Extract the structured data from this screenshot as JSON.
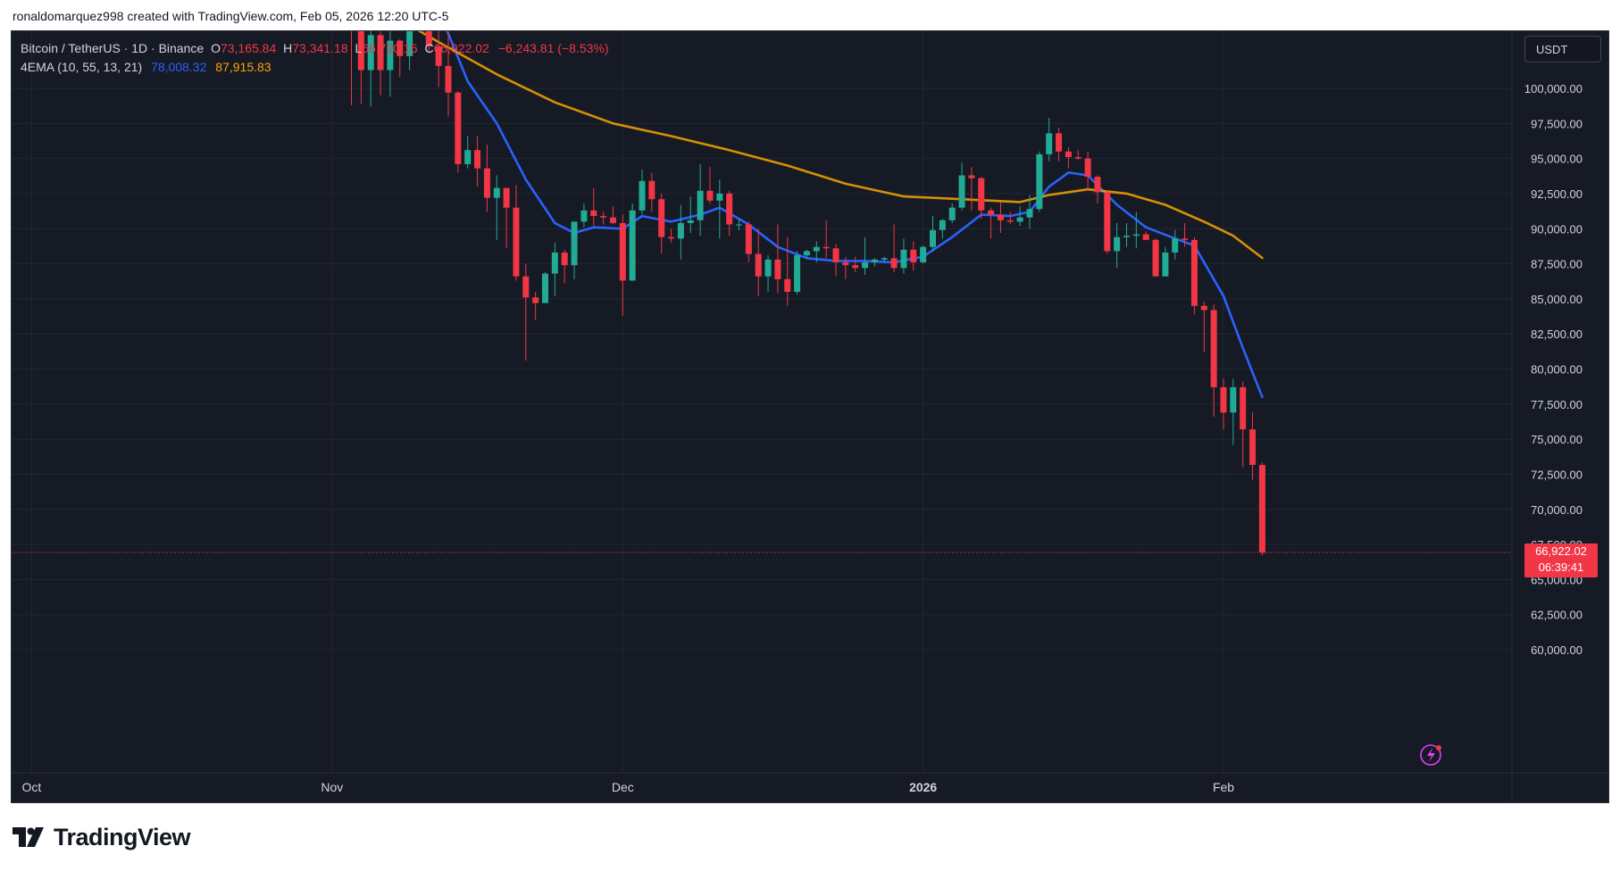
{
  "header": {
    "attribution": "ronaldomarquez998 created with TradingView.com, Feb 05, 2026 12:20 UTC-5"
  },
  "legend": {
    "symbol": "Bitcoin / TetherUS · 1D · Binance",
    "open_label": "O",
    "open": "73,165.84",
    "high_label": "H",
    "high": "73,341.18",
    "low_label": "L",
    "low": "66,720.15",
    "close_label": "C",
    "close": "66,922.02",
    "change": "−6,243.81 (−8.53%)",
    "indicator": "4EMA (10, 55, 13, 21)",
    "ema_fast_value": "78,008.32",
    "ema_slow_value": "87,915.83"
  },
  "currency": "USDT",
  "last_price": {
    "price": "66,922.02",
    "countdown": "06:39:41"
  },
  "brand": {
    "name": "TradingView"
  },
  "colors": {
    "up": "#22ab94",
    "down": "#f23645",
    "ema_fast": "#2962ff",
    "ema_slow": "#f7a600",
    "background": "#161a25",
    "grid": "#232733"
  },
  "chart_data": {
    "type": "candlestick",
    "y_ticks": [
      "60,000.00",
      "62,500.00",
      "65,000.00",
      "67,500.00",
      "70,000.00",
      "72,500.00",
      "75,000.00",
      "77,500.00",
      "80,000.00",
      "82,500.00",
      "85,000.00",
      "87,500.00",
      "90,000.00",
      "92,500.00",
      "95,000.00",
      "97,500.00",
      "100,000.00"
    ],
    "ylim": [
      58000,
      104500
    ],
    "x_labels": [
      {
        "label": "Oct",
        "date": "2025-10-01"
      },
      {
        "label": "Nov",
        "date": "2025-11-01"
      },
      {
        "label": "Dec",
        "date": "2025-12-01"
      },
      {
        "label": "2026",
        "date": "2026-01-01"
      },
      {
        "label": "Feb",
        "date": "2026-02-01"
      }
    ],
    "candles": [
      {
        "date": "2025-11-03",
        "o": 110500,
        "h": 110700,
        "l": 98800,
        "c": 104500
      },
      {
        "date": "2025-11-04",
        "o": 104500,
        "h": 104800,
        "l": 98900,
        "c": 101300
      },
      {
        "date": "2025-11-05",
        "o": 101300,
        "h": 104500,
        "l": 98700,
        "c": 103800
      },
      {
        "date": "2025-11-06",
        "o": 103800,
        "h": 104500,
        "l": 99500,
        "c": 101300
      },
      {
        "date": "2025-11-07",
        "o": 101300,
        "h": 104300,
        "l": 99400,
        "c": 103400
      },
      {
        "date": "2025-11-08",
        "o": 103400,
        "h": 103500,
        "l": 100800,
        "c": 102300
      },
      {
        "date": "2025-11-09",
        "o": 102300,
        "h": 105500,
        "l": 101300,
        "c": 104700
      },
      {
        "date": "2025-11-10",
        "o": 104700,
        "h": 106800,
        "l": 104500,
        "c": 106000
      },
      {
        "date": "2025-11-11",
        "o": 106000,
        "h": 107000,
        "l": 102500,
        "c": 103000
      },
      {
        "date": "2025-11-12",
        "o": 103000,
        "h": 105500,
        "l": 100100,
        "c": 101600
      },
      {
        "date": "2025-11-13",
        "o": 101600,
        "h": 104000,
        "l": 98000,
        "c": 99700
      },
      {
        "date": "2025-11-14",
        "o": 99700,
        "h": 99800,
        "l": 94000,
        "c": 94600
      },
      {
        "date": "2025-11-15",
        "o": 94600,
        "h": 96600,
        "l": 94300,
        "c": 95600
      },
      {
        "date": "2025-11-16",
        "o": 95600,
        "h": 96600,
        "l": 93000,
        "c": 94300
      },
      {
        "date": "2025-11-17",
        "o": 94300,
        "h": 96000,
        "l": 91200,
        "c": 92200
      },
      {
        "date": "2025-11-18",
        "o": 92200,
        "h": 93800,
        "l": 89200,
        "c": 92900
      },
      {
        "date": "2025-11-19",
        "o": 92900,
        "h": 92900,
        "l": 88600,
        "c": 91500
      },
      {
        "date": "2025-11-20",
        "o": 91500,
        "h": 93100,
        "l": 86300,
        "c": 86600
      },
      {
        "date": "2025-11-21",
        "o": 86600,
        "h": 87500,
        "l": 80600,
        "c": 85100
      },
      {
        "date": "2025-11-22",
        "o": 85100,
        "h": 85500,
        "l": 83500,
        "c": 84700
      },
      {
        "date": "2025-11-23",
        "o": 84700,
        "h": 86900,
        "l": 84700,
        "c": 86800
      },
      {
        "date": "2025-11-24",
        "o": 86800,
        "h": 89000,
        "l": 85200,
        "c": 88300
      },
      {
        "date": "2025-11-25",
        "o": 88300,
        "h": 88500,
        "l": 86100,
        "c": 87400
      },
      {
        "date": "2025-11-26",
        "o": 87400,
        "h": 90500,
        "l": 86400,
        "c": 90500
      },
      {
        "date": "2025-11-27",
        "o": 90500,
        "h": 91800,
        "l": 90100,
        "c": 91300
      },
      {
        "date": "2025-11-28",
        "o": 91300,
        "h": 92900,
        "l": 90200,
        "c": 90900
      },
      {
        "date": "2025-11-29",
        "o": 90900,
        "h": 91200,
        "l": 90300,
        "c": 90800
      },
      {
        "date": "2025-11-30",
        "o": 90800,
        "h": 91600,
        "l": 90300,
        "c": 90400
      },
      {
        "date": "2025-12-01",
        "o": 90400,
        "h": 91000,
        "l": 83800,
        "c": 86300
      },
      {
        "date": "2025-12-02",
        "o": 86300,
        "h": 91800,
        "l": 86300,
        "c": 91300
      },
      {
        "date": "2025-12-03",
        "o": 91300,
        "h": 94200,
        "l": 91000,
        "c": 93400
      },
      {
        "date": "2025-12-04",
        "o": 93400,
        "h": 94000,
        "l": 91200,
        "c": 92100
      },
      {
        "date": "2025-12-05",
        "o": 92100,
        "h": 92500,
        "l": 88200,
        "c": 89400
      },
      {
        "date": "2025-12-06",
        "o": 89400,
        "h": 90000,
        "l": 89000,
        "c": 89300
      },
      {
        "date": "2025-12-07",
        "o": 89300,
        "h": 91700,
        "l": 87800,
        "c": 90400
      },
      {
        "date": "2025-12-08",
        "o": 90400,
        "h": 92300,
        "l": 89700,
        "c": 90600
      },
      {
        "date": "2025-12-09",
        "o": 90600,
        "h": 94600,
        "l": 89500,
        "c": 92700
      },
      {
        "date": "2025-12-10",
        "o": 92700,
        "h": 94400,
        "l": 91800,
        "c": 92000
      },
      {
        "date": "2025-12-11",
        "o": 92000,
        "h": 93500,
        "l": 89300,
        "c": 92500
      },
      {
        "date": "2025-12-12",
        "o": 92500,
        "h": 92700,
        "l": 89500,
        "c": 90300
      },
      {
        "date": "2025-12-13",
        "o": 90300,
        "h": 90700,
        "l": 89900,
        "c": 90300
      },
      {
        "date": "2025-12-14",
        "o": 90300,
        "h": 90500,
        "l": 87600,
        "c": 88200
      },
      {
        "date": "2025-12-15",
        "o": 88200,
        "h": 90000,
        "l": 85200,
        "c": 86600
      },
      {
        "date": "2025-12-16",
        "o": 86600,
        "h": 88100,
        "l": 85500,
        "c": 87800
      },
      {
        "date": "2025-12-17",
        "o": 87800,
        "h": 90300,
        "l": 85400,
        "c": 86400
      },
      {
        "date": "2025-12-18",
        "o": 86400,
        "h": 89400,
        "l": 84500,
        "c": 85500
      },
      {
        "date": "2025-12-19",
        "o": 85500,
        "h": 88400,
        "l": 85300,
        "c": 88100
      },
      {
        "date": "2025-12-20",
        "o": 88100,
        "h": 88500,
        "l": 87900,
        "c": 88400
      },
      {
        "date": "2025-12-21",
        "o": 88400,
        "h": 89100,
        "l": 87600,
        "c": 88700
      },
      {
        "date": "2025-12-22",
        "o": 88700,
        "h": 90600,
        "l": 87900,
        "c": 88600
      },
      {
        "date": "2025-12-23",
        "o": 88600,
        "h": 88900,
        "l": 86600,
        "c": 87600
      },
      {
        "date": "2025-12-24",
        "o": 87600,
        "h": 88000,
        "l": 86400,
        "c": 87400
      },
      {
        "date": "2025-12-25",
        "o": 87400,
        "h": 88000,
        "l": 86900,
        "c": 87200
      },
      {
        "date": "2025-12-26",
        "o": 87200,
        "h": 89400,
        "l": 86700,
        "c": 87600
      },
      {
        "date": "2025-12-27",
        "o": 87600,
        "h": 87900,
        "l": 87300,
        "c": 87800
      },
      {
        "date": "2025-12-28",
        "o": 87800,
        "h": 88000,
        "l": 87600,
        "c": 87900
      },
      {
        "date": "2025-12-29",
        "o": 87900,
        "h": 90300,
        "l": 86900,
        "c": 87200
      },
      {
        "date": "2025-12-30",
        "o": 87200,
        "h": 89300,
        "l": 86800,
        "c": 88500
      },
      {
        "date": "2025-12-31",
        "o": 88500,
        "h": 89100,
        "l": 87000,
        "c": 87600
      },
      {
        "date": "2026-01-01",
        "o": 87600,
        "h": 88800,
        "l": 87500,
        "c": 88700
      },
      {
        "date": "2026-01-02",
        "o": 88700,
        "h": 90900,
        "l": 88400,
        "c": 89900
      },
      {
        "date": "2026-01-03",
        "o": 89900,
        "h": 90700,
        "l": 89300,
        "c": 90600
      },
      {
        "date": "2026-01-04",
        "o": 90600,
        "h": 91800,
        "l": 90400,
        "c": 91500
      },
      {
        "date": "2026-01-05",
        "o": 91500,
        "h": 94700,
        "l": 91300,
        "c": 93800
      },
      {
        "date": "2026-01-06",
        "o": 93800,
        "h": 94400,
        "l": 91300,
        "c": 93600
      },
      {
        "date": "2026-01-07",
        "o": 93600,
        "h": 93700,
        "l": 90700,
        "c": 91300
      },
      {
        "date": "2026-01-08",
        "o": 91300,
        "h": 91500,
        "l": 89300,
        "c": 91000
      },
      {
        "date": "2026-01-09",
        "o": 91000,
        "h": 91900,
        "l": 89700,
        "c": 90600
      },
      {
        "date": "2026-01-10",
        "o": 90600,
        "h": 91200,
        "l": 90300,
        "c": 90500
      },
      {
        "date": "2026-01-11",
        "o": 90500,
        "h": 91600,
        "l": 90200,
        "c": 90800
      },
      {
        "date": "2026-01-12",
        "o": 90800,
        "h": 92400,
        "l": 90000,
        "c": 91400
      },
      {
        "date": "2026-01-13",
        "o": 91400,
        "h": 95500,
        "l": 91200,
        "c": 95300
      },
      {
        "date": "2026-01-14",
        "o": 95300,
        "h": 97900,
        "l": 94800,
        "c": 96800
      },
      {
        "date": "2026-01-15",
        "o": 96800,
        "h": 97200,
        "l": 94800,
        "c": 95500
      },
      {
        "date": "2026-01-16",
        "o": 95500,
        "h": 95800,
        "l": 94300,
        "c": 95100
      },
      {
        "date": "2026-01-17",
        "o": 95100,
        "h": 95600,
        "l": 94900,
        "c": 95000
      },
      {
        "date": "2026-01-18",
        "o": 95000,
        "h": 95500,
        "l": 92700,
        "c": 93700
      },
      {
        "date": "2026-01-19",
        "o": 93700,
        "h": 93800,
        "l": 91800,
        "c": 92600
      },
      {
        "date": "2026-01-20",
        "o": 92600,
        "h": 92700,
        "l": 88200,
        "c": 88400
      },
      {
        "date": "2026-01-21",
        "o": 88400,
        "h": 90400,
        "l": 87200,
        "c": 89400
      },
      {
        "date": "2026-01-22",
        "o": 89400,
        "h": 90400,
        "l": 88700,
        "c": 89500
      },
      {
        "date": "2026-01-23",
        "o": 89500,
        "h": 91200,
        "l": 88600,
        "c": 89600
      },
      {
        "date": "2026-01-24",
        "o": 89600,
        "h": 89800,
        "l": 89200,
        "c": 89200
      },
      {
        "date": "2026-01-25",
        "o": 89200,
        "h": 89300,
        "l": 86700,
        "c": 86600
      },
      {
        "date": "2026-01-26",
        "o": 86600,
        "h": 88700,
        "l": 86600,
        "c": 88300
      },
      {
        "date": "2026-01-27",
        "o": 88300,
        "h": 89900,
        "l": 87800,
        "c": 89300
      },
      {
        "date": "2026-01-28",
        "o": 89300,
        "h": 90400,
        "l": 88700,
        "c": 89200
      },
      {
        "date": "2026-01-29",
        "o": 89200,
        "h": 89400,
        "l": 83900,
        "c": 84500
      },
      {
        "date": "2026-01-30",
        "o": 84500,
        "h": 84800,
        "l": 81200,
        "c": 84200
      },
      {
        "date": "2026-01-31",
        "o": 84200,
        "h": 84600,
        "l": 76600,
        "c": 78700
      },
      {
        "date": "2026-02-01",
        "o": 78700,
        "h": 79300,
        "l": 75700,
        "c": 76900
      },
      {
        "date": "2026-02-02",
        "o": 76900,
        "h": 79300,
        "l": 74600,
        "c": 78700
      },
      {
        "date": "2026-02-03",
        "o": 78700,
        "h": 79100,
        "l": 73000,
        "c": 75700
      },
      {
        "date": "2026-02-04",
        "o": 75700,
        "h": 76900,
        "l": 72100,
        "c": 73170
      },
      {
        "date": "2026-02-05",
        "o": 73165.84,
        "h": 73341.18,
        "l": 66720.15,
        "c": 66922.02
      }
    ],
    "series": [
      {
        "name": "78,008.32",
        "color": "#2962ff",
        "points": [
          [
            "2025-11-12",
            105600
          ],
          [
            "2025-11-15",
            100500
          ],
          [
            "2025-11-18",
            97500
          ],
          [
            "2025-11-21",
            93500
          ],
          [
            "2025-11-24",
            90400
          ],
          [
            "2025-11-26",
            89700
          ],
          [
            "2025-11-28",
            90100
          ],
          [
            "2025-12-01",
            90000
          ],
          [
            "2025-12-03",
            90900
          ],
          [
            "2025-12-06",
            90500
          ],
          [
            "2025-12-09",
            91000
          ],
          [
            "2025-12-11",
            91500
          ],
          [
            "2025-12-14",
            90300
          ],
          [
            "2025-12-17",
            88700
          ],
          [
            "2025-12-20",
            87900
          ],
          [
            "2025-12-23",
            87700
          ],
          [
            "2025-12-26",
            87700
          ],
          [
            "2025-12-29",
            87600
          ],
          [
            "2026-01-01",
            88000
          ],
          [
            "2026-01-04",
            89400
          ],
          [
            "2026-01-07",
            91000
          ],
          [
            "2026-01-10",
            90900
          ],
          [
            "2026-01-12",
            91200
          ],
          [
            "2026-01-14",
            93000
          ],
          [
            "2026-01-16",
            94000
          ],
          [
            "2026-01-18",
            93800
          ],
          [
            "2026-01-21",
            91700
          ],
          [
            "2026-01-24",
            90100
          ],
          [
            "2026-01-27",
            89300
          ],
          [
            "2026-01-29",
            88800
          ],
          [
            "2026-02-01",
            85200
          ],
          [
            "2026-02-03",
            81500
          ],
          [
            "2026-02-05",
            78008.32
          ]
        ]
      },
      {
        "name": "87,915.83",
        "color": "#f7a600",
        "points": [
          [
            "2025-11-07",
            105300
          ],
          [
            "2025-11-12",
            103300
          ],
          [
            "2025-11-18",
            101000
          ],
          [
            "2025-11-24",
            99000
          ],
          [
            "2025-11-30",
            97500
          ],
          [
            "2025-12-06",
            96600
          ],
          [
            "2025-12-12",
            95600
          ],
          [
            "2025-12-18",
            94500
          ],
          [
            "2025-12-24",
            93200
          ],
          [
            "2025-12-30",
            92300
          ],
          [
            "2026-01-05",
            92100
          ],
          [
            "2026-01-11",
            91900
          ],
          [
            "2026-01-14",
            92400
          ],
          [
            "2026-01-18",
            92800
          ],
          [
            "2026-01-22",
            92500
          ],
          [
            "2026-01-26",
            91700
          ],
          [
            "2026-01-30",
            90500
          ],
          [
            "2026-02-02",
            89500
          ],
          [
            "2026-02-05",
            87915.83
          ]
        ]
      }
    ]
  }
}
